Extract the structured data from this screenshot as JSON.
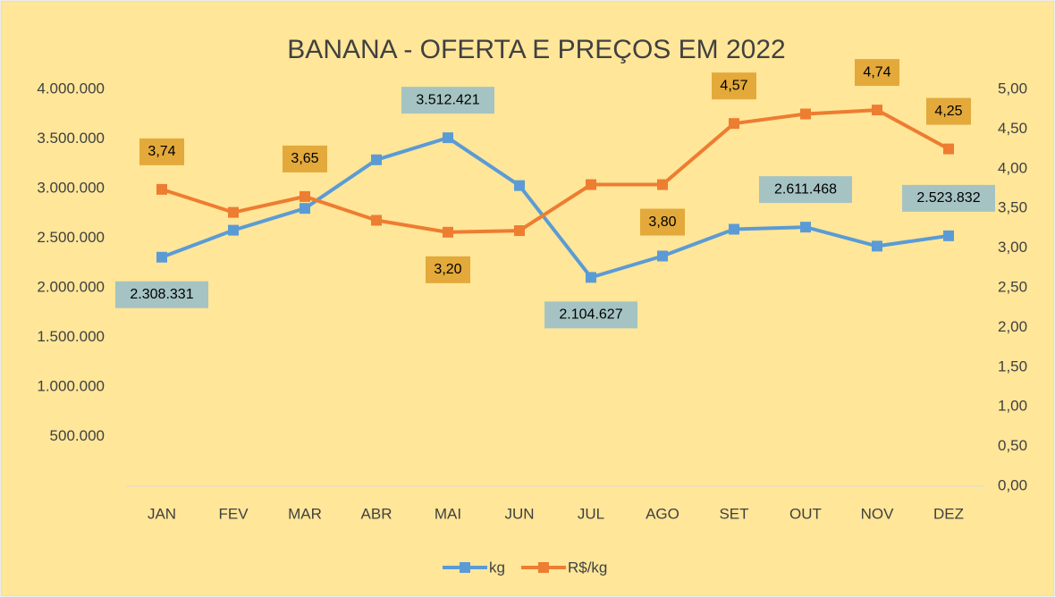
{
  "chart_data": {
    "type": "line",
    "title": "BANANA - OFERTA E PREÇOS EM 2022",
    "categories": [
      "JAN",
      "FEV",
      "MAR",
      "ABR",
      "MAI",
      "JUN",
      "JUL",
      "AGO",
      "SET",
      "OUT",
      "NOV",
      "DEZ"
    ],
    "series": [
      {
        "name": "kg",
        "color": "#5b9bd5",
        "values": [
          2308331,
          2580000,
          2800000,
          3290000,
          3512421,
          3030000,
          2104627,
          2320000,
          2590000,
          2611468,
          2420000,
          2523832
        ],
        "value_labels": [
          "2.308.331",
          null,
          null,
          null,
          "3.512.421",
          null,
          "2.104.627",
          null,
          null,
          "2.611.468",
          null,
          "2.523.832"
        ]
      },
      {
        "name": "R$/kg",
        "color": "#ed7d31",
        "axis": "y2",
        "values": [
          3.74,
          3.45,
          3.65,
          3.35,
          3.2,
          3.22,
          3.8,
          3.8,
          4.57,
          4.69,
          4.74,
          4.25
        ],
        "value_labels": [
          "3,74",
          null,
          "3,65",
          null,
          "3,20",
          null,
          null,
          "3,80",
          "4,57",
          null,
          "4,74",
          "4,25"
        ]
      }
    ],
    "ylim": [
      0,
      4000000
    ],
    "yticks": [
      {
        "value": 500000,
        "label": "500.000"
      },
      {
        "value": 1000000,
        "label": "1.000.000"
      },
      {
        "value": 1500000,
        "label": "1.500.000"
      },
      {
        "value": 2000000,
        "label": "2.000.000"
      },
      {
        "value": 2500000,
        "label": "2.500.000"
      },
      {
        "value": 3000000,
        "label": "3.000.000"
      },
      {
        "value": 3500000,
        "label": "3.500.000"
      },
      {
        "value": 4000000,
        "label": "4.000.000"
      }
    ],
    "y2lim": [
      0,
      5
    ],
    "y2ticks": [
      {
        "value": 0,
        "label": "0,00"
      },
      {
        "value": 0.5,
        "label": "0,50"
      },
      {
        "value": 1,
        "label": "1,00"
      },
      {
        "value": 1.5,
        "label": "1,50"
      },
      {
        "value": 2,
        "label": "2,00"
      },
      {
        "value": 2.5,
        "label": "2,50"
      },
      {
        "value": 3,
        "label": "3,00"
      },
      {
        "value": 3.5,
        "label": "3,50"
      },
      {
        "value": 4,
        "label": "4,00"
      },
      {
        "value": 4.5,
        "label": "4,50"
      },
      {
        "value": 5,
        "label": "5,00"
      }
    ],
    "grid": false,
    "legend": "bottom"
  }
}
